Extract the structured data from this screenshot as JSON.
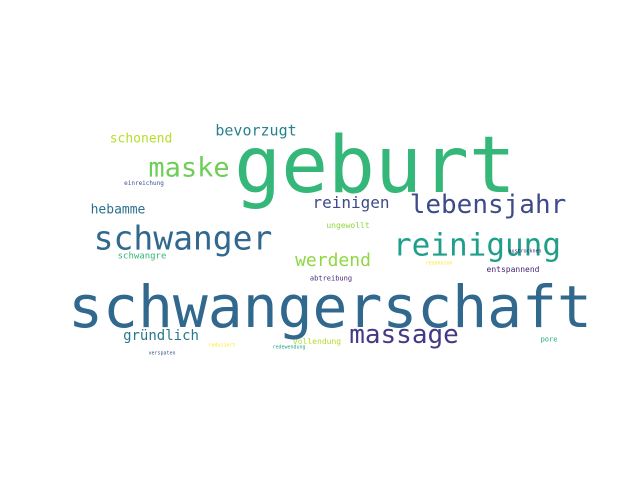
{
  "words": [
    {
      "text": "geburt",
      "color": "#35b779",
      "weight": 1.0
    },
    {
      "text": "schwangerschaft",
      "color": "#31688e",
      "weight": 0.9
    },
    {
      "text": "reinigung",
      "color": "#1f9e89",
      "weight": 0.55
    },
    {
      "text": "schwanger",
      "color": "#31688e",
      "weight": 0.55
    },
    {
      "text": "lebensjahr",
      "color": "#3e4a89",
      "weight": 0.45
    },
    {
      "text": "massage",
      "color": "#443a83",
      "weight": 0.45
    },
    {
      "text": "maske",
      "color": "#6ece58",
      "weight": 0.42
    },
    {
      "text": "werdend",
      "color": "#8fd744",
      "weight": 0.32
    },
    {
      "text": "reinigen",
      "color": "#3e4a89",
      "weight": 0.3
    },
    {
      "text": "bevorzugt",
      "color": "#26828e",
      "weight": 0.25
    },
    {
      "text": "gründlich",
      "color": "#2a788e",
      "weight": 0.22
    },
    {
      "text": "hebamme",
      "color": "#2c728e",
      "weight": 0.2
    },
    {
      "text": "schonend",
      "color": "#b5de2b",
      "weight": 0.2
    },
    {
      "text": "schwangre",
      "color": "#35b779",
      "weight": 0.15
    },
    {
      "text": "ungewollt",
      "color": "#8fd744",
      "weight": 0.14
    },
    {
      "text": "entspannend",
      "color": "#482475",
      "weight": 0.14
    },
    {
      "text": "vollendung",
      "color": "#b5de2b",
      "weight": 0.12
    },
    {
      "text": "abtreibung",
      "color": "#472c7a",
      "weight": 0.12
    },
    {
      "text": "pore",
      "color": "#22a884",
      "weight": 0.12
    },
    {
      "text": "einreichung",
      "color": "#3b528b",
      "weight": 0.1
    },
    {
      "text": "verspaten",
      "color": "#3b528b",
      "weight": 0.08
    },
    {
      "text": "austrocknen",
      "color": "#481a6c",
      "weight": 0.08
    },
    {
      "text": "rezension",
      "color": "#fde725",
      "weight": 0.08
    },
    {
      "text": "reduziert",
      "color": "#fde725",
      "weight": 0.07
    },
    {
      "text": "redewendung",
      "color": "#20a486",
      "weight": 0.07
    }
  ]
}
